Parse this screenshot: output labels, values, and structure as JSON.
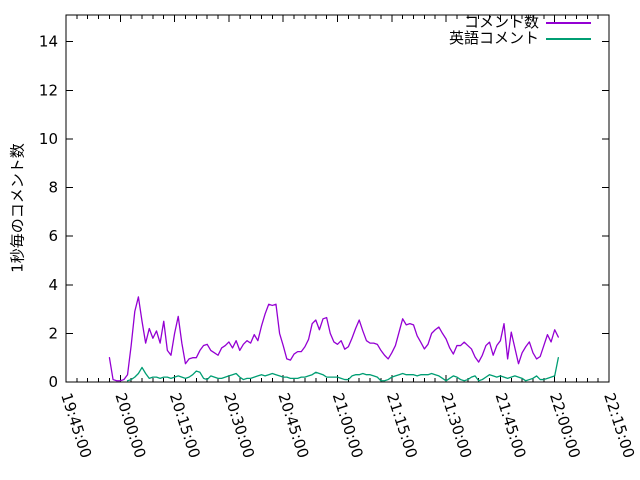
{
  "chart_data": {
    "type": "line",
    "title": "",
    "xlabel": "",
    "ylabel": "1秒毎のコメント数",
    "grid": false,
    "legend_position": "top-right-inside",
    "background_color": "#ffffff",
    "axis_color": "#000000",
    "x_range": [
      "19:45:00",
      "22:15:00"
    ],
    "ylim": [
      0,
      15.1
    ],
    "y_ticks": [
      0,
      2,
      4,
      6,
      8,
      10,
      12,
      14
    ],
    "x_tick_labels": [
      "19:45:00",
      "20:00:00",
      "20:15:00",
      "20:30:00",
      "20:45:00",
      "21:00:00",
      "21:15:00",
      "21:30:00",
      "21:45:00",
      "22:00:00",
      "22:15:00"
    ],
    "x_major_interval_minutes": 15,
    "x_minor_interval_minutes": 3,
    "series": [
      {
        "name": "コメント数",
        "color": "#9400d3",
        "start": "19:57:00",
        "interval_seconds": 60,
        "values": [
          1.0,
          0.1,
          0.05,
          0.05,
          0.1,
          0.3,
          1.5,
          2.9,
          3.5,
          2.5,
          1.6,
          2.2,
          1.8,
          2.1,
          1.6,
          2.5,
          1.3,
          1.1,
          2.0,
          2.7,
          1.6,
          0.75,
          0.95,
          1.0,
          1.0,
          1.3,
          1.5,
          1.55,
          1.3,
          1.2,
          1.1,
          1.4,
          1.5,
          1.65,
          1.4,
          1.7,
          1.3,
          1.55,
          1.7,
          1.6,
          1.95,
          1.7,
          2.3,
          2.8,
          3.2,
          3.15,
          3.2,
          2.0,
          1.5,
          0.95,
          0.9,
          1.15,
          1.25,
          1.25,
          1.45,
          1.75,
          2.4,
          2.55,
          2.15,
          2.6,
          2.65,
          2.0,
          1.65,
          1.55,
          1.7,
          1.35,
          1.45,
          1.8,
          2.2,
          2.55,
          2.1,
          1.7,
          1.6,
          1.6,
          1.55,
          1.3,
          1.1,
          0.95,
          1.2,
          1.5,
          2.05,
          2.6,
          2.35,
          2.4,
          2.35,
          1.9,
          1.64,
          1.36,
          1.55,
          2.0,
          2.15,
          2.26,
          2.0,
          1.77,
          1.4,
          1.15,
          1.5,
          1.5,
          1.64,
          1.5,
          1.36,
          1.03,
          0.82,
          1.1,
          1.5,
          1.64,
          1.1,
          1.5,
          1.7,
          2.4,
          0.95,
          2.05,
          1.4,
          0.75,
          1.2,
          1.45,
          1.65,
          1.2,
          0.95,
          1.05,
          1.5,
          1.95,
          1.65,
          2.15,
          1.85
        ]
      },
      {
        "name": "英語コメント",
        "color": "#009e73",
        "start": "20:02:00",
        "interval_seconds": 60,
        "values": [
          0.05,
          0.1,
          0.2,
          0.35,
          0.6,
          0.35,
          0.15,
          0.2,
          0.2,
          0.15,
          0.2,
          0.2,
          0.15,
          0.2,
          0.25,
          0.2,
          0.15,
          0.2,
          0.3,
          0.45,
          0.4,
          0.15,
          0.1,
          0.25,
          0.2,
          0.15,
          0.15,
          0.2,
          0.25,
          0.3,
          0.35,
          0.2,
          0.1,
          0.15,
          0.15,
          0.2,
          0.25,
          0.3,
          0.25,
          0.3,
          0.35,
          0.3,
          0.25,
          0.2,
          0.2,
          0.15,
          0.15,
          0.15,
          0.2,
          0.2,
          0.25,
          0.3,
          0.4,
          0.35,
          0.3,
          0.2,
          0.2,
          0.2,
          0.2,
          0.15,
          0.1,
          0.1,
          0.25,
          0.3,
          0.3,
          0.35,
          0.3,
          0.3,
          0.25,
          0.2,
          0.05,
          0.05,
          0.1,
          0.2,
          0.25,
          0.3,
          0.35,
          0.3,
          0.3,
          0.3,
          0.25,
          0.3,
          0.3,
          0.3,
          0.35,
          0.3,
          0.25,
          0.15,
          0.05,
          0.15,
          0.25,
          0.2,
          0.1,
          0.05,
          0.1,
          0.2,
          0.25,
          0.05,
          0.1,
          0.2,
          0.3,
          0.25,
          0.2,
          0.25,
          0.2,
          0.15,
          0.2,
          0.25,
          0.2,
          0.15,
          0.05,
          0.1,
          0.15,
          0.25,
          0.1,
          0.1,
          0.15,
          0.2,
          0.25,
          1.0
        ]
      }
    ]
  }
}
